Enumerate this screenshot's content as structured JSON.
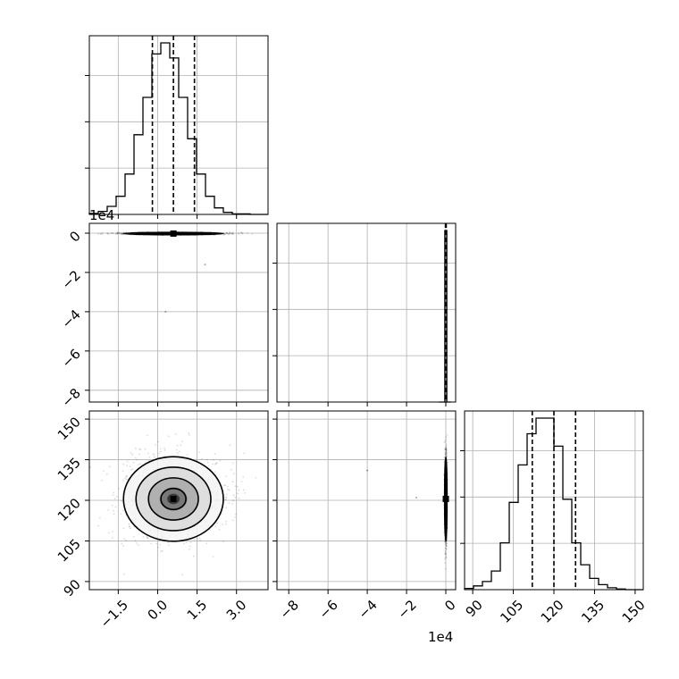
{
  "chart_data": {
    "type": "corner",
    "parameters": [
      {
        "range": [
          -2.6,
          4.2
        ],
        "ticks": [
          -1.5,
          0.0,
          1.5,
          3.0
        ],
        "tick_labels": [
          "−1.5",
          "0.0",
          "1.5",
          "3.0"
        ],
        "offset_label": "",
        "quantiles": [
          -0.2,
          0.6,
          1.4
        ],
        "hist": {
          "edges": [
            -2.6,
            -2.26,
            -1.92,
            -1.58,
            -1.24,
            -0.9,
            -0.56,
            -0.22,
            0.12,
            0.46,
            0.8,
            1.14,
            1.48,
            1.82,
            2.16,
            2.5,
            2.84,
            3.18,
            3.52,
            3.86,
            4.2
          ],
          "counts": [
            2,
            6,
            16,
            36,
            80,
            158,
            232,
            318,
            340,
            310,
            232,
            150,
            80,
            36,
            13,
            4,
            1,
            1,
            0,
            0
          ]
        }
      },
      {
        "range": [
          -8.6,
          0.5
        ],
        "ticks": [
          -8,
          -6,
          -4,
          -2,
          0
        ],
        "tick_labels": [
          "−8",
          "−6",
          "−4",
          "−2",
          "0"
        ],
        "offset_label": "1e4",
        "quantiles": [
          -0.02,
          0.0,
          0.02
        ],
        "hist": {
          "edges": [
            -0.35,
            -0.05,
            0.05,
            0.25
          ],
          "counts": [
            0,
            2000,
            0
          ]
        }
      },
      {
        "range": [
          87,
          153
        ],
        "ticks": [
          90,
          105,
          120,
          135,
          150
        ],
        "tick_labels": [
          "90",
          "105",
          "120",
          "135",
          "150"
        ],
        "offset_label": "",
        "quantiles": [
          112,
          120,
          128
        ],
        "hist": {
          "edges": [
            87,
            90.3,
            93.6,
            96.9,
            100.2,
            103.5,
            106.8,
            110.1,
            113.4,
            116.7,
            120.0,
            123.3,
            126.6,
            129.9,
            133.2,
            136.5,
            139.8,
            143.1,
            146.4,
            149.7,
            153
          ],
          "counts": [
            2,
            6,
            13,
            30,
            75,
            140,
            200,
            250,
            275,
            275,
            230,
            145,
            75,
            40,
            18,
            8,
            3,
            1,
            0,
            0
          ]
        }
      }
    ],
    "contour_levels": [
      0.118,
      0.393,
      0.675,
      0.865
    ],
    "pairs": [
      {
        "row": 1,
        "col": 0,
        "center": [
          0.6,
          -0.02
        ],
        "sigma": [
          0.95,
          0.03
        ]
      },
      {
        "row": 2,
        "col": 0,
        "center": [
          0.6,
          120.5
        ],
        "sigma": [
          0.95,
          7.8
        ]
      },
      {
        "row": 2,
        "col": 1,
        "center": [
          0.0,
          120.5
        ],
        "sigma": [
          0.03,
          7.8
        ]
      }
    ],
    "outliers": [
      {
        "row": 1,
        "col": 0,
        "x": 0.3,
        "y": -4.0
      },
      {
        "row": 1,
        "col": 0,
        "x": 1.8,
        "y": -1.6
      },
      {
        "row": 2,
        "col": 1,
        "x": -4.0,
        "y": 131
      },
      {
        "row": 2,
        "col": 1,
        "x": -1.5,
        "y": 121
      }
    ],
    "grid": true,
    "histtype": "step",
    "line_color": "#000000"
  }
}
